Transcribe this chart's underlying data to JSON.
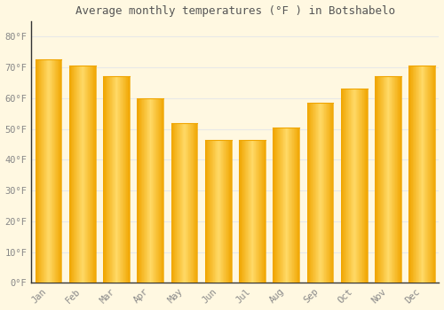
{
  "title": "Average monthly temperatures (°F ) in Botshabelo",
  "months": [
    "Jan",
    "Feb",
    "Mar",
    "Apr",
    "May",
    "Jun",
    "Jul",
    "Aug",
    "Sep",
    "Oct",
    "Nov",
    "Dec"
  ],
  "values": [
    72.5,
    70.5,
    67,
    60,
    52,
    46.5,
    46.5,
    50.5,
    58.5,
    63,
    67,
    70.5
  ],
  "bar_color_center": "#FFD966",
  "bar_color_edge": "#F0A500",
  "background_color": "#FFF8E1",
  "plot_bg_color": "#FFF8E1",
  "grid_color": "#E8E8E8",
  "tick_label_color": "#888888",
  "title_color": "#555555",
  "spine_color": "#333333",
  "ylim": [
    0,
    85
  ],
  "yticks": [
    0,
    10,
    20,
    30,
    40,
    50,
    60,
    70,
    80
  ],
  "ytick_labels": [
    "0°F",
    "10°F",
    "20°F",
    "30°F",
    "40°F",
    "50°F",
    "60°F",
    "70°F",
    "80°F"
  ]
}
